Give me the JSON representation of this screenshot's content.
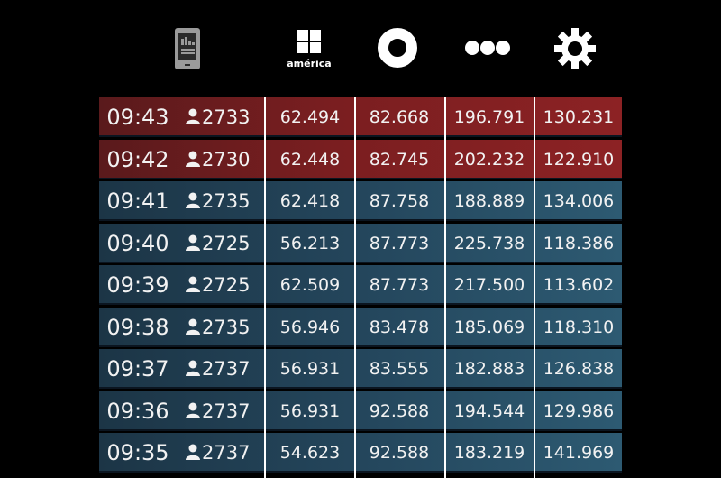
{
  "toolbar": {
    "icons": [
      "phone-icon",
      "america-icon",
      "ring-icon",
      "more-dots-icon",
      "gear-icon"
    ],
    "america_label": "américa"
  },
  "colors": {
    "red_row": "#7a1e20",
    "blue_row": "#24465c",
    "background": "#000000"
  },
  "rows": [
    {
      "time": "09:43",
      "users": "2733",
      "v1": "62.494",
      "v2": "82.668",
      "v3": "196.791",
      "v4": "130.231",
      "status": "red"
    },
    {
      "time": "09:42",
      "users": "2730",
      "v1": "62.448",
      "v2": "82.745",
      "v3": "202.232",
      "v4": "122.910",
      "status": "red"
    },
    {
      "time": "09:41",
      "users": "2735",
      "v1": "62.418",
      "v2": "87.758",
      "v3": "188.889",
      "v4": "134.006",
      "status": "blue"
    },
    {
      "time": "09:40",
      "users": "2725",
      "v1": "56.213",
      "v2": "87.773",
      "v3": "225.738",
      "v4": "118.386",
      "status": "blue"
    },
    {
      "time": "09:39",
      "users": "2725",
      "v1": "62.509",
      "v2": "87.773",
      "v3": "217.500",
      "v4": "113.602",
      "status": "blue"
    },
    {
      "time": "09:38",
      "users": "2735",
      "v1": "56.946",
      "v2": "83.478",
      "v3": "185.069",
      "v4": "118.310",
      "status": "blue"
    },
    {
      "time": "09:37",
      "users": "2737",
      "v1": "56.931",
      "v2": "83.555",
      "v3": "182.883",
      "v4": "126.838",
      "status": "blue"
    },
    {
      "time": "09:36",
      "users": "2737",
      "v1": "56.931",
      "v2": "92.588",
      "v3": "194.544",
      "v4": "129.986",
      "status": "blue"
    },
    {
      "time": "09:35",
      "users": "2737",
      "v1": "54.623",
      "v2": "92.588",
      "v3": "183.219",
      "v4": "141.969",
      "status": "blue"
    }
  ]
}
